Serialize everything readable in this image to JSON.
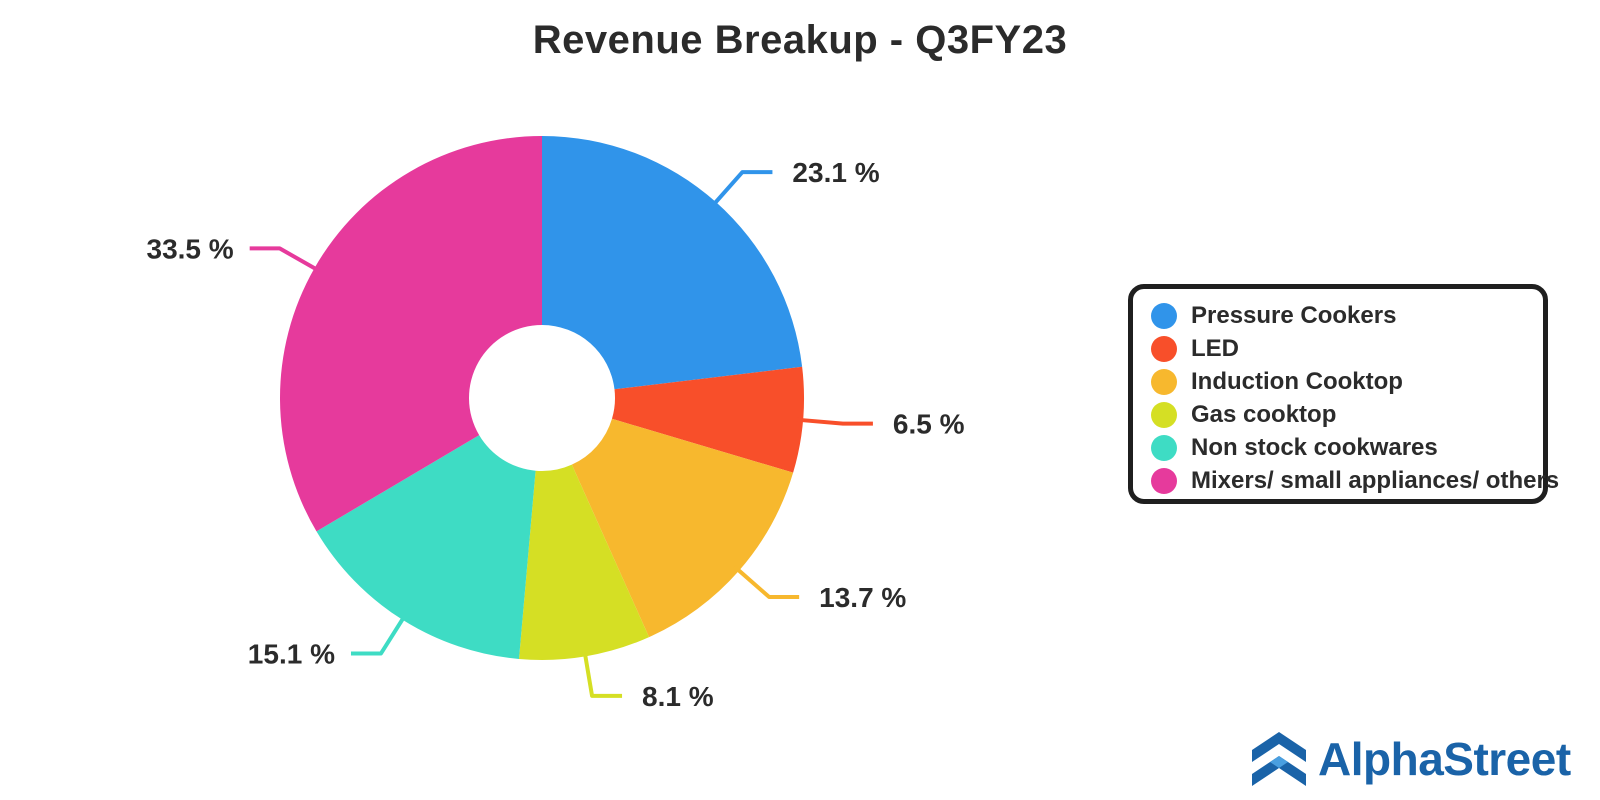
{
  "chart_data": {
    "type": "pie",
    "title": "Revenue Breakup - Q3FY23",
    "value_suffix": " %",
    "legend_position": "right",
    "slices": [
      {
        "name": "Pressure Cookers",
        "value": 23.1,
        "color": "#3094EA"
      },
      {
        "name": "LED",
        "value": 6.5,
        "color": "#F84F2A"
      },
      {
        "name": "Induction Cooktop",
        "value": 13.7,
        "color": "#F7B82E"
      },
      {
        "name": "Gas cooktop",
        "value": 8.1,
        "color": "#D5DF24"
      },
      {
        "name": "Non stock cookwares",
        "value": 15.1,
        "color": "#3EDCC4"
      },
      {
        "name": "Mixers/ small appliances/ others",
        "value": 33.5,
        "color": "#E63A9C"
      }
    ]
  },
  "brand": {
    "name": "AlphaStreet",
    "logo_icon": "alphastreet-chevron-logo",
    "color": "#1a63a8"
  }
}
